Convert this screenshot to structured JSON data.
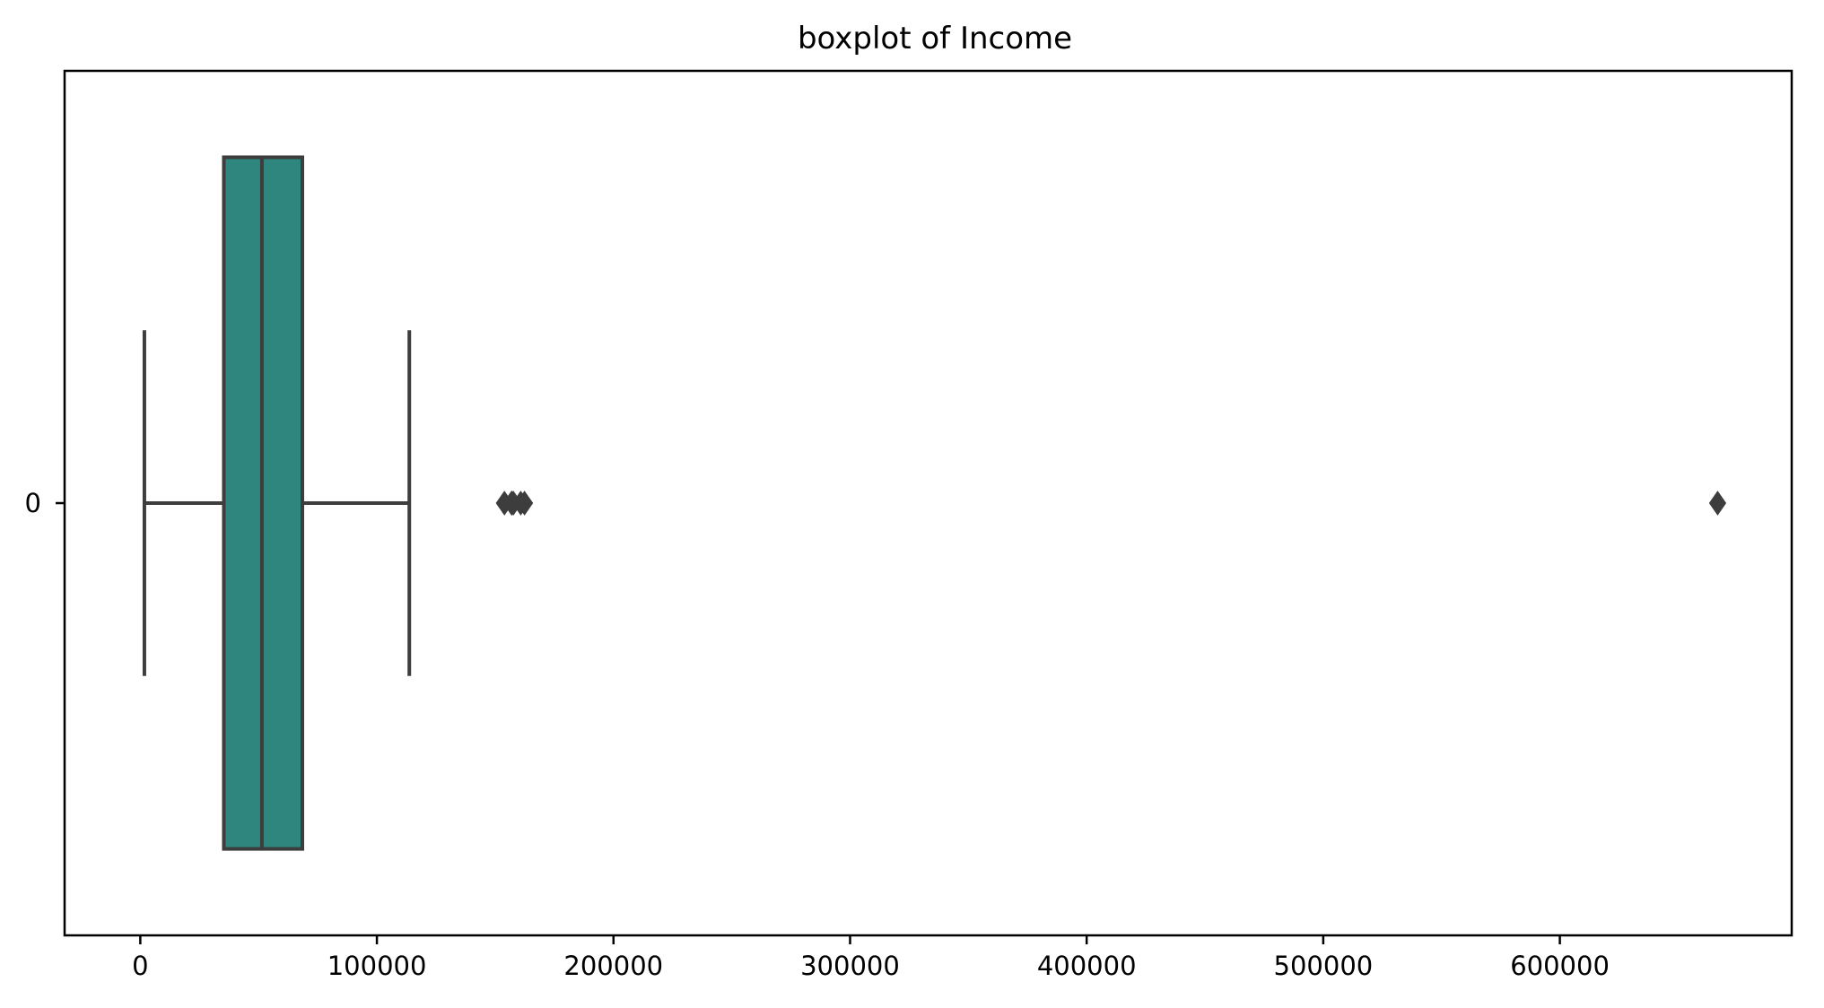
{
  "chart_data": {
    "type": "boxplot",
    "title": "boxplot of Income",
    "xlabel": "",
    "ylabel": "",
    "orientation": "horizontal",
    "categories": [
      "0"
    ],
    "xlim": [
      -32000,
      698000
    ],
    "xticks": [
      0,
      100000,
      200000,
      300000,
      400000,
      500000,
      600000
    ],
    "xtick_labels": [
      "0",
      "100000",
      "200000",
      "300000",
      "400000",
      "500000",
      "600000"
    ],
    "grid": false,
    "legend": "none",
    "box_color": "#2e867f",
    "line_color": "#3d3d3d",
    "boxes": [
      {
        "category": "0",
        "whisker_low": 1730,
        "q1": 35300,
        "median": 51400,
        "q3": 68500,
        "whisker_high": 113700,
        "outliers": [
          153900,
          156900,
          157100,
          157700,
          160800,
          162400,
          666700
        ]
      }
    ]
  }
}
